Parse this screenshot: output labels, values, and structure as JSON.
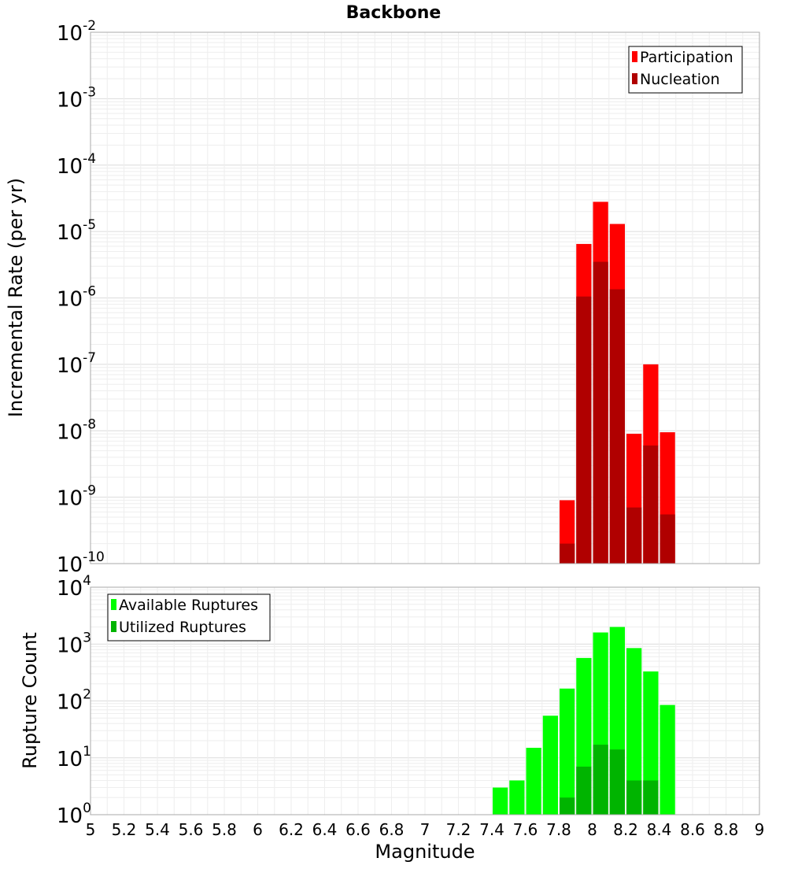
{
  "chart_data": [
    {
      "type": "bar",
      "title": "Backbone",
      "xlabel": "",
      "ylabel": "Incremental Rate (per yr)",
      "log_y": true,
      "ylim_exponents": [
        -10,
        -2
      ],
      "xlim": [
        5,
        9
      ],
      "bar_width": 0.1,
      "legend_position": "top-right",
      "grid": true,
      "series": [
        {
          "name": "Participation",
          "color": "#ff0000",
          "x": [
            7.85,
            7.95,
            8.05,
            8.15,
            8.25,
            8.35,
            8.45
          ],
          "values": [
            9e-10,
            6.5e-06,
            2.8e-05,
            1.3e-05,
            9e-09,
            1e-07,
            9.5e-09
          ]
        },
        {
          "name": "Nucleation",
          "color": "#b00000",
          "x": [
            7.85,
            7.95,
            8.05,
            8.15,
            8.25,
            8.35,
            8.45
          ],
          "values": [
            2e-10,
            1.05e-06,
            3.5e-06,
            1.35e-06,
            7e-10,
            6e-09,
            5.5e-10
          ]
        }
      ]
    },
    {
      "type": "bar",
      "title": "",
      "xlabel": "Magnitude",
      "ylabel": "Rupture Count",
      "log_y": true,
      "ylim_exponents": [
        0,
        4
      ],
      "xlim": [
        5,
        9
      ],
      "bar_width": 0.1,
      "legend_position": "top-left",
      "grid": true,
      "x_ticks": [
        "5",
        "5.2",
        "5.4",
        "5.6",
        "5.8",
        "6",
        "6.2",
        "6.4",
        "6.6",
        "6.8",
        "7",
        "7.2",
        "7.4",
        "7.6",
        "7.8",
        "8",
        "8.2",
        "8.4",
        "8.6",
        "8.8",
        "9"
      ],
      "series": [
        {
          "name": "Available Ruptures",
          "color": "#00ff00",
          "x": [
            7.15,
            7.45,
            7.55,
            7.65,
            7.75,
            7.85,
            7.95,
            8.05,
            8.15,
            8.25,
            8.35,
            8.45
          ],
          "values": [
            1,
            3,
            4,
            15,
            55,
            165,
            570,
            1600,
            2000,
            850,
            330,
            85
          ]
        },
        {
          "name": "Utilized Ruptures",
          "color": "#00b400",
          "x": [
            7.85,
            7.95,
            8.05,
            8.15,
            8.25,
            8.35,
            8.45
          ],
          "values": [
            2,
            7,
            17,
            14,
            4,
            4,
            1
          ]
        }
      ]
    }
  ]
}
